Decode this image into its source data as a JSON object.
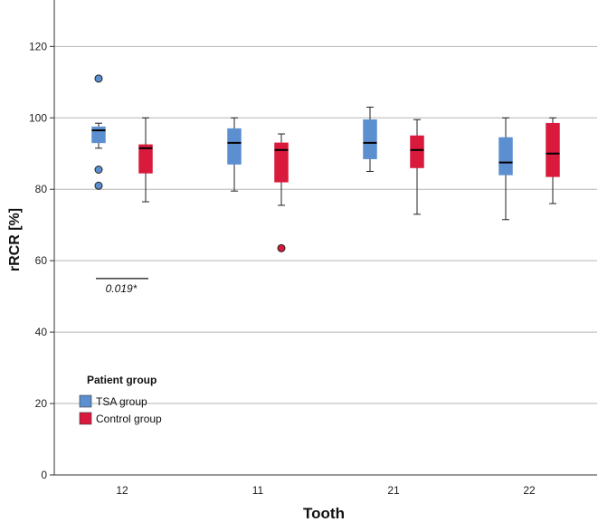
{
  "chart_data": {
    "type": "boxplot",
    "title": "",
    "xlabel": "Tooth",
    "ylabel": "rRCR [%]",
    "ylim": [
      0,
      133
    ],
    "yticks": [
      0,
      20,
      40,
      60,
      80,
      100,
      120
    ],
    "grid": true,
    "categories": [
      "12",
      "11",
      "21",
      "22"
    ],
    "series": [
      {
        "name": "TSA group",
        "color": "#5b8fd0",
        "boxes": [
          {
            "category": "12",
            "whisker_low": 91.5,
            "q1": 93,
            "median": 96.5,
            "q3": 97.5,
            "whisker_high": 98.5,
            "outliers": [
              111,
              85.5,
              81
            ]
          },
          {
            "category": "11",
            "whisker_low": 79.5,
            "q1": 87,
            "median": 93,
            "q3": 97,
            "whisker_high": 100,
            "outliers": []
          },
          {
            "category": "21",
            "whisker_low": 85,
            "q1": 88.5,
            "median": 93,
            "q3": 99.5,
            "whisker_high": 103,
            "outliers": []
          },
          {
            "category": "22",
            "whisker_low": 71.5,
            "q1": 84,
            "median": 87.5,
            "q3": 94.5,
            "whisker_high": 100,
            "outliers": []
          }
        ]
      },
      {
        "name": "Control group",
        "color": "#d91a3c",
        "boxes": [
          {
            "category": "12",
            "whisker_low": 76.5,
            "q1": 84.5,
            "median": 91.5,
            "q3": 92.5,
            "whisker_high": 100,
            "outliers": []
          },
          {
            "category": "11",
            "whisker_low": 75.5,
            "q1": 82,
            "median": 91,
            "q3": 93,
            "whisker_high": 95.5,
            "outliers": [
              63.5
            ]
          },
          {
            "category": "21",
            "whisker_low": 73,
            "q1": 86,
            "median": 91,
            "q3": 95,
            "whisker_high": 99.5,
            "outliers": []
          },
          {
            "category": "22",
            "whisker_low": 76,
            "q1": 83.5,
            "median": 90,
            "q3": 98.5,
            "whisker_high": 100,
            "outliers": []
          }
        ]
      }
    ],
    "legend": {
      "title": "Patient group",
      "placement": "bottom-left"
    },
    "annotations": [
      {
        "text": "0.019*",
        "category": "12",
        "y": 55
      }
    ]
  }
}
